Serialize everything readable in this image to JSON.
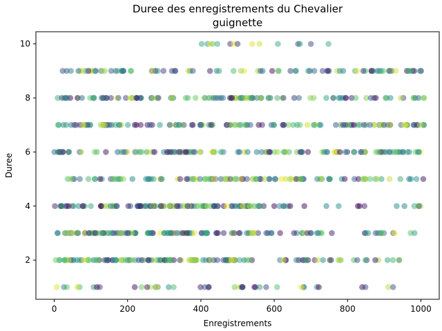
{
  "chart_data": {
    "type": "scatter",
    "title_lines": [
      "Duree des enregistrements du Chevalier",
      "guignette"
    ],
    "xlabel": "Enregistrements",
    "ylabel": "Duree",
    "xlim": [
      -50,
      1050
    ],
    "ylim": [
      0.55,
      10.45
    ],
    "xticks": [
      0,
      200,
      400,
      600,
      800,
      1000
    ],
    "yticks": [
      2,
      4,
      6,
      8,
      10
    ],
    "grid": false,
    "marker_alpha": 0.5,
    "colormap": "viridis",
    "palette": [
      "#440154",
      "#3b528b",
      "#21918c",
      "#5ec962",
      "#fde725"
    ],
    "n_points": 1000,
    "duration_levels": [
      1,
      2,
      3,
      4,
      5,
      6,
      7,
      8,
      9,
      10
    ],
    "points_per_level": [
      40,
      130,
      130,
      125,
      105,
      120,
      125,
      115,
      85,
      25
    ],
    "x_range_note": "points spread across Enregistrements 0-1010",
    "series": [
      {
        "points": [
          [
            418,
            10
          ],
          [
            425,
            10
          ],
          [
            432,
            10
          ],
          [
            480,
            10
          ],
          [
            490,
            10
          ],
          [
            540,
            10
          ],
          [
            560,
            10
          ],
          [
            665,
            10
          ],
          [
            670,
            10
          ],
          [
            748,
            10
          ],
          [
            402,
            10
          ],
          [
            445,
            10
          ],
          [
            500,
            10
          ],
          [
            610,
            10
          ],
          [
            700,
            10
          ]
        ]
      }
    ]
  }
}
